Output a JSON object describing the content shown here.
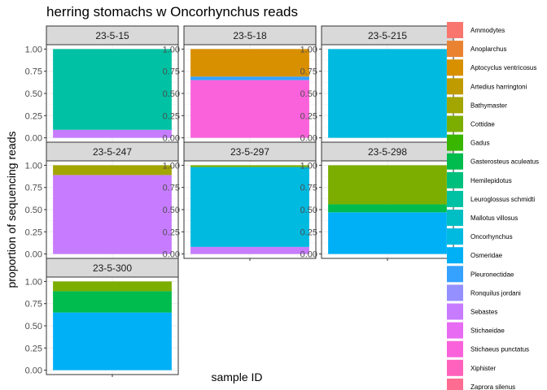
{
  "chart_data": {
    "type": "bar",
    "stacked": true,
    "faceted": true,
    "title": "herring stomachs w Oncorhynchus reads",
    "xlabel": "sample ID",
    "ylabel": "proportion of sequencing reads",
    "ylim": [
      0,
      1
    ],
    "y_ticks": [
      "0.00",
      "0.25",
      "0.50",
      "0.75",
      "1.00"
    ],
    "grid": true,
    "legend_position": "right",
    "legend": [
      {
        "name": "Ammodytes",
        "color": "#F8766D"
      },
      {
        "name": "Anoplarchus",
        "color": "#EA8331"
      },
      {
        "name": "Aptocyclus ventricosus",
        "color": "#D89000"
      },
      {
        "name": "Artedius harringtoni",
        "color": "#C09B00"
      },
      {
        "name": "Bathymaster",
        "color": "#A3A500"
      },
      {
        "name": "Cottidae",
        "color": "#7CAE00"
      },
      {
        "name": "Gadus",
        "color": "#39B600"
      },
      {
        "name": "Gasterosteus aculeatus",
        "color": "#00BB4E"
      },
      {
        "name": "Hemilepidotus",
        "color": "#00BF7D"
      },
      {
        "name": "Leuroglossus schmidti",
        "color": "#00C1A3"
      },
      {
        "name": "Mallotus villosus",
        "color": "#00BFC4"
      },
      {
        "name": "Oncorhynchus",
        "color": "#00BAE0"
      },
      {
        "name": "Osmeridae",
        "color": "#00B0F6"
      },
      {
        "name": "Pleuronectidae",
        "color": "#35A2FF"
      },
      {
        "name": "Ronquilus jordani",
        "color": "#9590FF"
      },
      {
        "name": "Sebastes",
        "color": "#C77CFF"
      },
      {
        "name": "Stichaeidae",
        "color": "#E76BF3"
      },
      {
        "name": "Stichaeus punctatus",
        "color": "#FA62DB"
      },
      {
        "name": "Xiphister",
        "color": "#FF62BC"
      },
      {
        "name": "Zaprora silenus",
        "color": "#FF6C91"
      }
    ],
    "panels": [
      {
        "label": "23-5-15",
        "segments": [
          {
            "taxon": "Sebastes",
            "value": 0.09
          },
          {
            "taxon": "Leuroglossus schmidti",
            "value": 0.91
          }
        ]
      },
      {
        "label": "23-5-18",
        "segments": [
          {
            "taxon": "Stichaeus punctatus",
            "value": 0.65
          },
          {
            "taxon": "Pleuronectidae",
            "value": 0.04
          },
          {
            "taxon": "Aptocyclus ventricosus",
            "value": 0.31
          }
        ]
      },
      {
        "label": "23-5-215",
        "segments": [
          {
            "taxon": "Oncorhynchus",
            "value": 1.0
          }
        ]
      },
      {
        "label": "23-5-247",
        "segments": [
          {
            "taxon": "Sebastes",
            "value": 0.89
          },
          {
            "taxon": "Bathymaster",
            "value": 0.11
          }
        ]
      },
      {
        "label": "23-5-297",
        "segments": [
          {
            "taxon": "Sebastes",
            "value": 0.08
          },
          {
            "taxon": "Oncorhynchus",
            "value": 0.9
          },
          {
            "taxon": "Cottidae",
            "value": 0.02
          }
        ]
      },
      {
        "label": "23-5-298",
        "segments": [
          {
            "taxon": "Osmeridae",
            "value": 0.47
          },
          {
            "taxon": "Gasterosteus aculeatus",
            "value": 0.09
          },
          {
            "taxon": "Cottidae",
            "value": 0.44
          }
        ]
      },
      {
        "label": "23-5-300",
        "segments": [
          {
            "taxon": "Osmeridae",
            "value": 0.65
          },
          {
            "taxon": "Gasterosteus aculeatus",
            "value": 0.24
          },
          {
            "taxon": "Cottidae",
            "value": 0.11
          }
        ]
      }
    ]
  }
}
